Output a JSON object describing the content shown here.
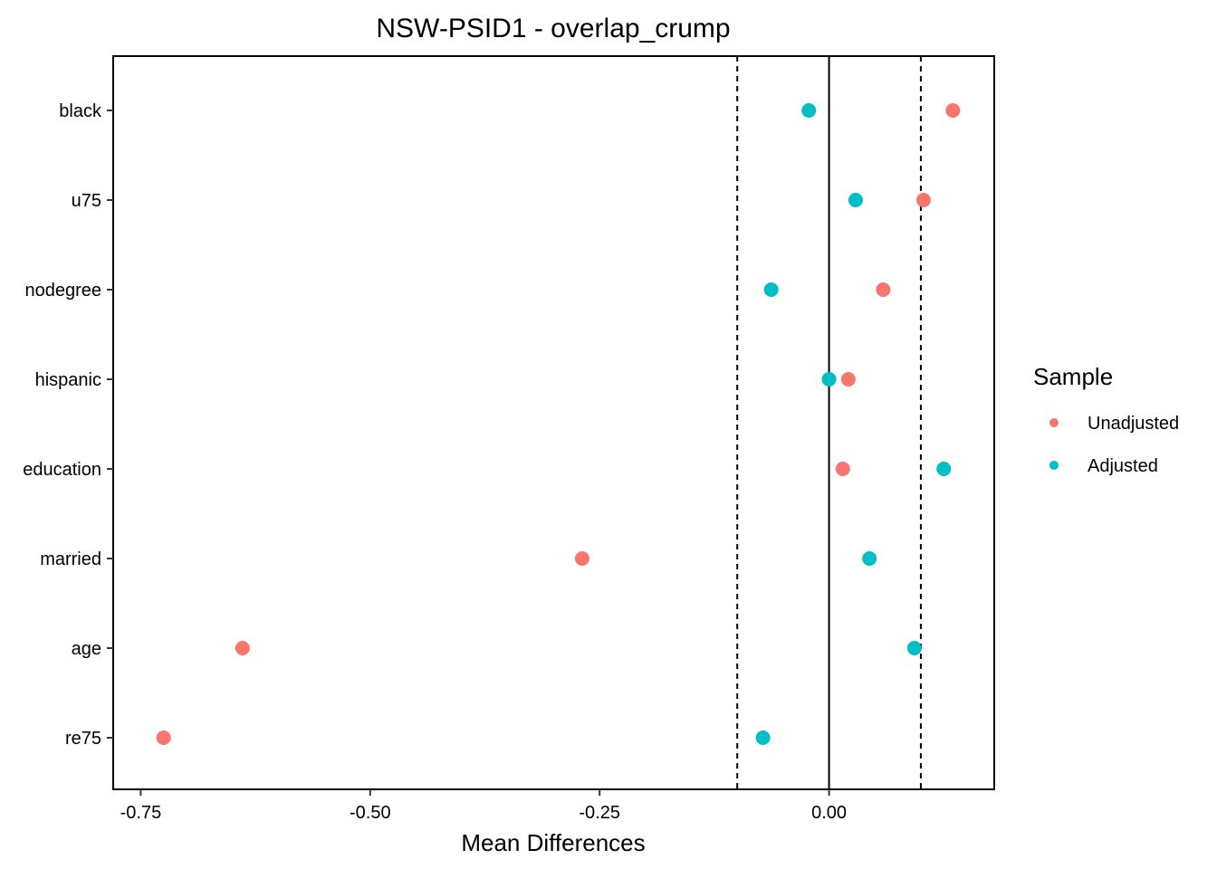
{
  "chart_data": {
    "type": "scatter",
    "title": "NSW-PSID1 - overlap_crump",
    "xlabel": "Mean Differences",
    "ylabel": "",
    "xlim": [
      -0.78,
      0.18
    ],
    "x_ticks": [
      -0.75,
      -0.5,
      -0.25,
      0.0
    ],
    "x_tick_labels": [
      "-0.75",
      "-0.50",
      "-0.25",
      "0.00"
    ],
    "categories": [
      "black",
      "u75",
      "nodegree",
      "hispanic",
      "education",
      "married",
      "age",
      "re75"
    ],
    "reference_lines": [
      {
        "x": 0.0,
        "style": "solid"
      },
      {
        "x": -0.1,
        "style": "dashed"
      },
      {
        "x": 0.1,
        "style": "dashed"
      }
    ],
    "grid": false,
    "legend": {
      "title": "Sample",
      "position": "right"
    },
    "series": [
      {
        "name": "Unadjusted",
        "color": "#F8766D",
        "values": [
          0.135,
          0.103,
          0.059,
          0.021,
          0.015,
          -0.269,
          -0.639,
          -0.725
        ]
      },
      {
        "name": "Adjusted",
        "color": "#00BFC4",
        "values": [
          -0.022,
          0.029,
          -0.063,
          0.0,
          0.125,
          0.044,
          0.093,
          -0.072
        ]
      }
    ]
  }
}
